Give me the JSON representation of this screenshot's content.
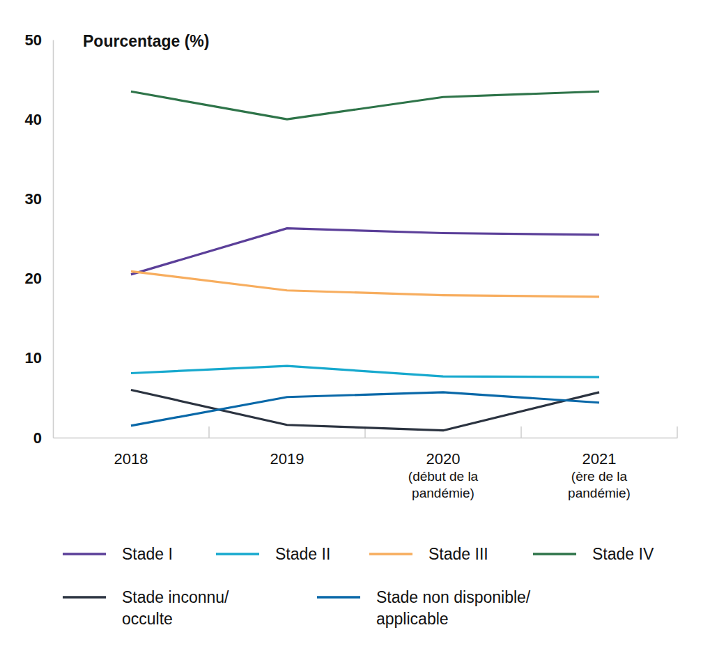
{
  "chart_data": {
    "type": "line",
    "y_label": "Pourcentage (%)",
    "categories": [
      "2018",
      "2019",
      "2020\n(début de la\npandémie)",
      "2021\n(ère de la\npandémie)"
    ],
    "ylim": [
      0,
      50
    ],
    "yticks": [
      0,
      10,
      20,
      30,
      40,
      50
    ],
    "grid": false,
    "series": [
      {
        "name": "Stade I",
        "color": "#5b3f99",
        "values": [
          20.5,
          26.3,
          25.7,
          25.5
        ]
      },
      {
        "name": "Stade II",
        "color": "#17a9ce",
        "values": [
          8.1,
          9.0,
          7.7,
          7.6
        ]
      },
      {
        "name": "Stade III",
        "color": "#f7ad5e",
        "values": [
          20.9,
          18.5,
          17.9,
          17.7
        ]
      },
      {
        "name": "Stade IV",
        "color": "#2e7449",
        "values": [
          43.5,
          40.0,
          42.8,
          43.5
        ]
      },
      {
        "name": "Stade inconnu/\nocculte",
        "color": "#2b3340",
        "values": [
          6.0,
          1.6,
          0.9,
          5.7
        ]
      },
      {
        "name": "Stade non disponible/\napplicable",
        "color": "#0968a8",
        "values": [
          1.5,
          5.1,
          5.7,
          4.4
        ]
      }
    ]
  }
}
